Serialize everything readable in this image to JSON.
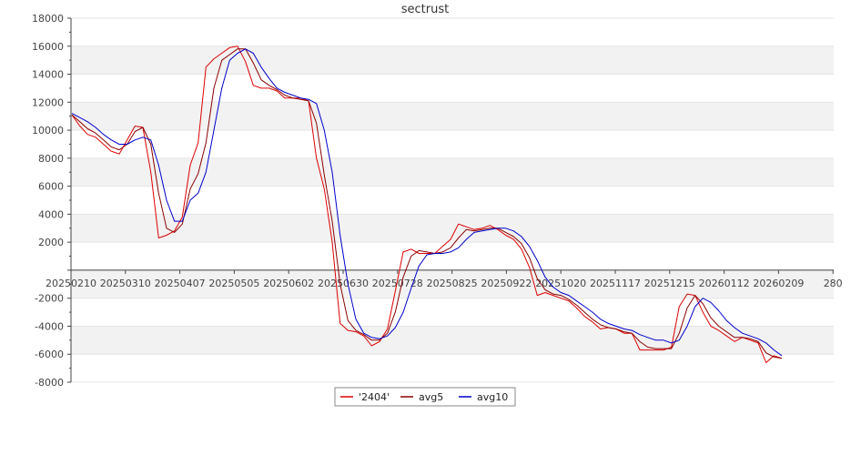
{
  "chart_data": {
    "type": "line",
    "title": "sectrust",
    "xlabel": "",
    "ylabel": "",
    "ylim": [
      -8000,
      18000
    ],
    "grid": true,
    "legend_position": "bottom",
    "yticks": [
      18000,
      16000,
      14000,
      12000,
      10000,
      8000,
      6000,
      4000,
      2000,
      -2000,
      -4000,
      -6000,
      -8000
    ],
    "x_tick_labels": [
      "20250210",
      "20250310",
      "20250407",
      "20250505",
      "20250602",
      "20250630",
      "20250728",
      "20250825",
      "20250922",
      "20251020",
      "20251117",
      "20251215",
      "20260112",
      "20260209",
      "280"
    ],
    "series": [
      {
        "name": "'2404'",
        "color": "#dd0000",
        "values": [
          11100,
          10300,
          9700,
          9500,
          9000,
          8500,
          8300,
          9300,
          10300,
          10200,
          7000,
          2300,
          2500,
          2800,
          3800,
          7500,
          9100,
          14500,
          15100,
          15500,
          15900,
          16000,
          14900,
          13200,
          13000,
          13000,
          12800,
          12300,
          12300,
          12300,
          12100,
          8000,
          5800,
          2000,
          -3800,
          -4300,
          -4400,
          -4700,
          -5400,
          -5100,
          -4200,
          -1500,
          1300,
          1500,
          1200,
          1200,
          1200,
          1700,
          2200,
          3300,
          3100,
          2900,
          3000,
          3200,
          2900,
          2500,
          2200,
          1500,
          200,
          -1800,
          -1600,
          -1800,
          -2000,
          -2200,
          -2700,
          -3300,
          -3700,
          -4200,
          -4100,
          -4200,
          -4500,
          -4500,
          -5700,
          -5700,
          -5700,
          -5700,
          -5500,
          -2600,
          -1700,
          -1800,
          -3000,
          -4000,
          -4300,
          -4700,
          -5100,
          -4800,
          -5000,
          -5200,
          -6600,
          -6100,
          -6300
        ],
        "line_width": 1
      },
      {
        "name": "avg5",
        "color": "#8b0000",
        "values": [
          11100,
          10600,
          10100,
          9800,
          9300,
          8800,
          8600,
          9000,
          9900,
          10200,
          9000,
          5500,
          3000,
          2700,
          3300,
          5800,
          6900,
          9100,
          13000,
          15000,
          15400,
          15800,
          15800,
          14800,
          13600,
          13200,
          12900,
          12500,
          12300,
          12200,
          12100,
          10500,
          6800,
          3500,
          -1000,
          -3600,
          -4300,
          -4600,
          -5000,
          -5000,
          -4500,
          -3000,
          -500,
          1000,
          1400,
          1300,
          1200,
          1300,
          1600,
          2300,
          2900,
          2800,
          2900,
          3000,
          3000,
          2700,
          2400,
          1900,
          900,
          -600,
          -1400,
          -1700,
          -1800,
          -2100,
          -2500,
          -3000,
          -3500,
          -3900,
          -4100,
          -4200,
          -4400,
          -4500,
          -5100,
          -5500,
          -5600,
          -5600,
          -5600,
          -4500,
          -2700,
          -1800,
          -2400,
          -3400,
          -4000,
          -4400,
          -4800,
          -4800,
          -4900,
          -5100,
          -5900,
          -6200,
          -6300
        ],
        "line_width": 1
      },
      {
        "name": "avg10",
        "color": "#0000cc",
        "values": [
          11200,
          10900,
          10600,
          10200,
          9700,
          9300,
          9000,
          9000,
          9300,
          9500,
          9300,
          7500,
          5000,
          3500,
          3500,
          5000,
          5500,
          7000,
          10000,
          13000,
          15000,
          15500,
          15800,
          15500,
          14500,
          13700,
          13000,
          12700,
          12500,
          12300,
          12200,
          11900,
          10000,
          7000,
          2500,
          -1000,
          -3500,
          -4500,
          -4800,
          -4900,
          -4700,
          -4100,
          -3000,
          -1300,
          300,
          1100,
          1200,
          1200,
          1300,
          1600,
          2200,
          2700,
          2800,
          2900,
          3000,
          3000,
          2800,
          2400,
          1700,
          700,
          -500,
          -1200,
          -1600,
          -1800,
          -2200,
          -2600,
          -3000,
          -3500,
          -3800,
          -4000,
          -4200,
          -4300,
          -4600,
          -4800,
          -5000,
          -5000,
          -5200,
          -5000,
          -4000,
          -2600,
          -2000,
          -2300,
          -2900,
          -3600,
          -4100,
          -4500,
          -4700,
          -4900,
          -5200,
          -5700,
          -6100
        ],
        "line_width": 1
      }
    ]
  }
}
